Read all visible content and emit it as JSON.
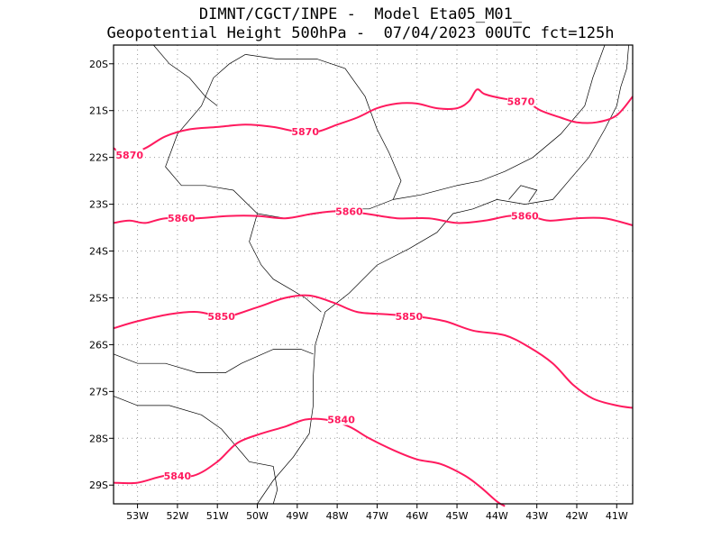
{
  "header": {
    "line1": "DIMNT/CGCT/INPE -  Model Eta05_M01_",
    "line2": "Geopotential Height 500hPa -  07/04/2023 00UTC fct=125h"
  },
  "map": {
    "lon_range": [
      -53.6,
      -40.6
    ],
    "lat_range": [
      -29.4,
      -19.6
    ],
    "lat_ticks": [
      {
        "lat": -20,
        "label": "20S"
      },
      {
        "lat": -21,
        "label": "21S"
      },
      {
        "lat": -22,
        "label": "22S"
      },
      {
        "lat": -23,
        "label": "23S"
      },
      {
        "lat": -24,
        "label": "24S"
      },
      {
        "lat": -25,
        "label": "25S"
      },
      {
        "lat": -26,
        "label": "26S"
      },
      {
        "lat": -27,
        "label": "27S"
      },
      {
        "lat": -28,
        "label": "28S"
      },
      {
        "lat": -29,
        "label": "29S"
      }
    ],
    "lon_ticks": [
      {
        "lon": -53,
        "label": "53W"
      },
      {
        "lon": -52,
        "label": "52W"
      },
      {
        "lon": -51,
        "label": "51W"
      },
      {
        "lon": -50,
        "label": "50W"
      },
      {
        "lon": -49,
        "label": "49W"
      },
      {
        "lon": -48,
        "label": "48W"
      },
      {
        "lon": -47,
        "label": "47W"
      },
      {
        "lon": -46,
        "label": "46W"
      },
      {
        "lon": -45,
        "label": "45W"
      },
      {
        "lon": -44,
        "label": "44W"
      },
      {
        "lon": -43,
        "label": "43W"
      },
      {
        "lon": -42,
        "label": "42W"
      },
      {
        "lon": -41,
        "label": "41W"
      }
    ],
    "contour_color": "#ff1a5e",
    "contours": [
      {
        "value": 5870,
        "points": [
          [
            -53.6,
            -21.8
          ],
          [
            -53.3,
            -21.95
          ],
          [
            -52.8,
            -21.8
          ],
          [
            -52.3,
            -21.55
          ],
          [
            -51.7,
            -21.4
          ],
          [
            -51.0,
            -21.35
          ],
          [
            -50.3,
            -21.3
          ],
          [
            -49.6,
            -21.35
          ],
          [
            -49.0,
            -21.45
          ],
          [
            -48.5,
            -21.45
          ],
          [
            -48.0,
            -21.3
          ],
          [
            -47.5,
            -21.15
          ],
          [
            -47.0,
            -20.95
          ],
          [
            -46.5,
            -20.85
          ],
          [
            -46.0,
            -20.85
          ],
          [
            -45.5,
            -20.95
          ],
          [
            -45.0,
            -20.95
          ],
          [
            -44.7,
            -20.8
          ],
          [
            -44.5,
            -20.55
          ],
          [
            -44.3,
            -20.65
          ],
          [
            -43.8,
            -20.75
          ],
          [
            -43.3,
            -20.8
          ],
          [
            -42.9,
            -21.0
          ],
          [
            -42.4,
            -21.15
          ],
          [
            -42.0,
            -21.25
          ],
          [
            -41.5,
            -21.25
          ],
          [
            -41.0,
            -21.1
          ],
          [
            -40.6,
            -20.7
          ]
        ],
        "labels": [
          {
            "text": "5870",
            "lon": -48.8,
            "lat": -21.45
          },
          {
            "text": "5870",
            "lon": -43.4,
            "lat": -20.8
          },
          {
            "text": "5870",
            "lon": -53.2,
            "lat": -21.95
          }
        ]
      },
      {
        "value": 5860,
        "points": [
          [
            -53.6,
            -23.4
          ],
          [
            -53.2,
            -23.35
          ],
          [
            -52.8,
            -23.4
          ],
          [
            -52.3,
            -23.3
          ],
          [
            -51.5,
            -23.3
          ],
          [
            -50.7,
            -23.25
          ],
          [
            -50.0,
            -23.25
          ],
          [
            -49.3,
            -23.3
          ],
          [
            -48.6,
            -23.2
          ],
          [
            -48.0,
            -23.15
          ],
          [
            -47.3,
            -23.2
          ],
          [
            -46.5,
            -23.3
          ],
          [
            -45.7,
            -23.3
          ],
          [
            -45.0,
            -23.4
          ],
          [
            -44.3,
            -23.35
          ],
          [
            -43.7,
            -23.25
          ],
          [
            -43.2,
            -23.25
          ],
          [
            -42.7,
            -23.35
          ],
          [
            -42.0,
            -23.3
          ],
          [
            -41.3,
            -23.3
          ],
          [
            -40.6,
            -23.45
          ]
        ],
        "labels": [
          {
            "text": "5860",
            "lon": -51.9,
            "lat": -23.3
          },
          {
            "text": "5860",
            "lon": -47.7,
            "lat": -23.15
          },
          {
            "text": "5860",
            "lon": -43.3,
            "lat": -23.25
          }
        ]
      },
      {
        "value": 5850,
        "points": [
          [
            -53.6,
            -25.65
          ],
          [
            -53.0,
            -25.5
          ],
          [
            -52.2,
            -25.35
          ],
          [
            -51.5,
            -25.3
          ],
          [
            -50.8,
            -25.4
          ],
          [
            -50.0,
            -25.2
          ],
          [
            -49.3,
            -25.0
          ],
          [
            -48.7,
            -24.95
          ],
          [
            -48.1,
            -25.1
          ],
          [
            -47.5,
            -25.3
          ],
          [
            -46.8,
            -25.35
          ],
          [
            -46.0,
            -25.4
          ],
          [
            -45.3,
            -25.5
          ],
          [
            -44.6,
            -25.7
          ],
          [
            -43.8,
            -25.8
          ],
          [
            -43.2,
            -26.05
          ],
          [
            -42.6,
            -26.4
          ],
          [
            -42.1,
            -26.85
          ],
          [
            -41.6,
            -27.15
          ],
          [
            -41.0,
            -27.3
          ],
          [
            -40.6,
            -27.35
          ]
        ],
        "labels": [
          {
            "text": "5850",
            "lon": -50.9,
            "lat": -25.4
          },
          {
            "text": "5850",
            "lon": -46.2,
            "lat": -25.4
          }
        ]
      },
      {
        "value": 5840,
        "points": [
          [
            -53.6,
            -28.95
          ],
          [
            -53.0,
            -28.95
          ],
          [
            -52.3,
            -28.8
          ],
          [
            -51.6,
            -28.8
          ],
          [
            -51.0,
            -28.5
          ],
          [
            -50.5,
            -28.1
          ],
          [
            -49.9,
            -27.9
          ],
          [
            -49.3,
            -27.75
          ],
          [
            -48.8,
            -27.6
          ],
          [
            -48.3,
            -27.6
          ],
          [
            -47.7,
            -27.75
          ],
          [
            -47.2,
            -28.0
          ],
          [
            -46.6,
            -28.25
          ],
          [
            -46.0,
            -28.45
          ],
          [
            -45.4,
            -28.55
          ],
          [
            -44.8,
            -28.8
          ],
          [
            -44.4,
            -29.05
          ],
          [
            -44.0,
            -29.35
          ],
          [
            -43.8,
            -29.45
          ]
        ],
        "labels": [
          {
            "text": "5840",
            "lon": -52.0,
            "lat": -28.8
          },
          {
            "text": "5840",
            "lon": -47.9,
            "lat": -27.6
          }
        ]
      }
    ],
    "coast_and_borders": [
      [
        [
          -40.7,
          -19.6
        ],
        [
          -40.75,
          -20.1
        ],
        [
          -40.9,
          -20.5
        ],
        [
          -41.0,
          -20.9
        ],
        [
          -41.3,
          -21.4
        ],
        [
          -41.7,
          -22.0
        ],
        [
          -42.0,
          -22.3
        ],
        [
          -42.6,
          -22.9
        ],
        [
          -43.3,
          -23.0
        ],
        [
          -44.0,
          -22.9
        ],
        [
          -44.6,
          -23.1
        ],
        [
          -45.1,
          -23.2
        ],
        [
          -45.5,
          -23.6
        ],
        [
          -46.2,
          -23.95
        ],
        [
          -47.0,
          -24.3
        ],
        [
          -47.7,
          -24.9
        ],
        [
          -48.3,
          -25.3
        ],
        [
          -48.55,
          -26.0
        ],
        [
          -48.6,
          -26.7
        ],
        [
          -48.6,
          -27.3
        ],
        [
          -48.7,
          -27.9
        ],
        [
          -49.1,
          -28.4
        ],
        [
          -49.6,
          -28.9
        ],
        [
          -50.0,
          -29.4
        ]
      ],
      [
        [
          -53.6,
          -26.2
        ],
        [
          -53.0,
          -26.4
        ],
        [
          -52.3,
          -26.4
        ],
        [
          -51.5,
          -26.6
        ],
        [
          -50.8,
          -26.6
        ],
        [
          -50.4,
          -26.4
        ],
        [
          -49.6,
          -26.1
        ],
        [
          -48.9,
          -26.1
        ],
        [
          -48.6,
          -26.2
        ]
      ],
      [
        [
          -53.6,
          -27.1
        ],
        [
          -53.0,
          -27.3
        ],
        [
          -52.2,
          -27.3
        ],
        [
          -51.4,
          -27.5
        ],
        [
          -50.9,
          -27.8
        ],
        [
          -50.4,
          -28.3
        ],
        [
          -50.2,
          -28.5
        ],
        [
          -49.6,
          -28.6
        ],
        [
          -49.5,
          -29.1
        ],
        [
          -49.6,
          -29.4
        ]
      ],
      [
        [
          -48.4,
          -25.3
        ],
        [
          -48.8,
          -25.0
        ],
        [
          -49.2,
          -24.8
        ],
        [
          -49.6,
          -24.6
        ],
        [
          -49.9,
          -24.3
        ],
        [
          -50.2,
          -23.8
        ],
        [
          -50.0,
          -23.2
        ],
        [
          -50.6,
          -22.7
        ],
        [
          -51.3,
          -22.6
        ],
        [
          -51.9,
          -22.6
        ],
        [
          -52.3,
          -22.2
        ],
        [
          -52.0,
          -21.5
        ],
        [
          -51.4,
          -20.9
        ],
        [
          -51.1,
          -20.3
        ],
        [
          -50.7,
          -20.0
        ],
        [
          -50.3,
          -19.8
        ]
      ],
      [
        [
          -50.0,
          -23.2
        ],
        [
          -49.3,
          -23.3
        ],
        [
          -48.5,
          -23.2
        ],
        [
          -47.8,
          -23.1
        ],
        [
          -47.2,
          -23.1
        ],
        [
          -46.6,
          -22.9
        ],
        [
          -46.4,
          -22.5
        ],
        [
          -46.7,
          -21.9
        ],
        [
          -47.0,
          -21.4
        ],
        [
          -47.3,
          -20.7
        ],
        [
          -47.8,
          -20.1
        ],
        [
          -48.5,
          -19.9
        ],
        [
          -49.5,
          -19.9
        ],
        [
          -50.3,
          -19.8
        ]
      ],
      [
        [
          -46.6,
          -22.9
        ],
        [
          -45.9,
          -22.8
        ],
        [
          -45.0,
          -22.6
        ],
        [
          -44.4,
          -22.5
        ],
        [
          -43.8,
          -22.3
        ],
        [
          -43.1,
          -22.0
        ],
        [
          -42.4,
          -21.5
        ],
        [
          -41.8,
          -20.9
        ],
        [
          -41.6,
          -20.3
        ],
        [
          -41.3,
          -19.6
        ]
      ],
      [
        [
          -43.7,
          -22.9
        ],
        [
          -43.4,
          -22.6
        ],
        [
          -43.0,
          -22.7
        ],
        [
          -43.2,
          -22.95
        ]
      ],
      [
        [
          -52.6,
          -19.6
        ],
        [
          -52.2,
          -20.0
        ],
        [
          -51.7,
          -20.3
        ],
        [
          -51.3,
          -20.7
        ],
        [
          -51.0,
          -20.9
        ]
      ]
    ]
  }
}
